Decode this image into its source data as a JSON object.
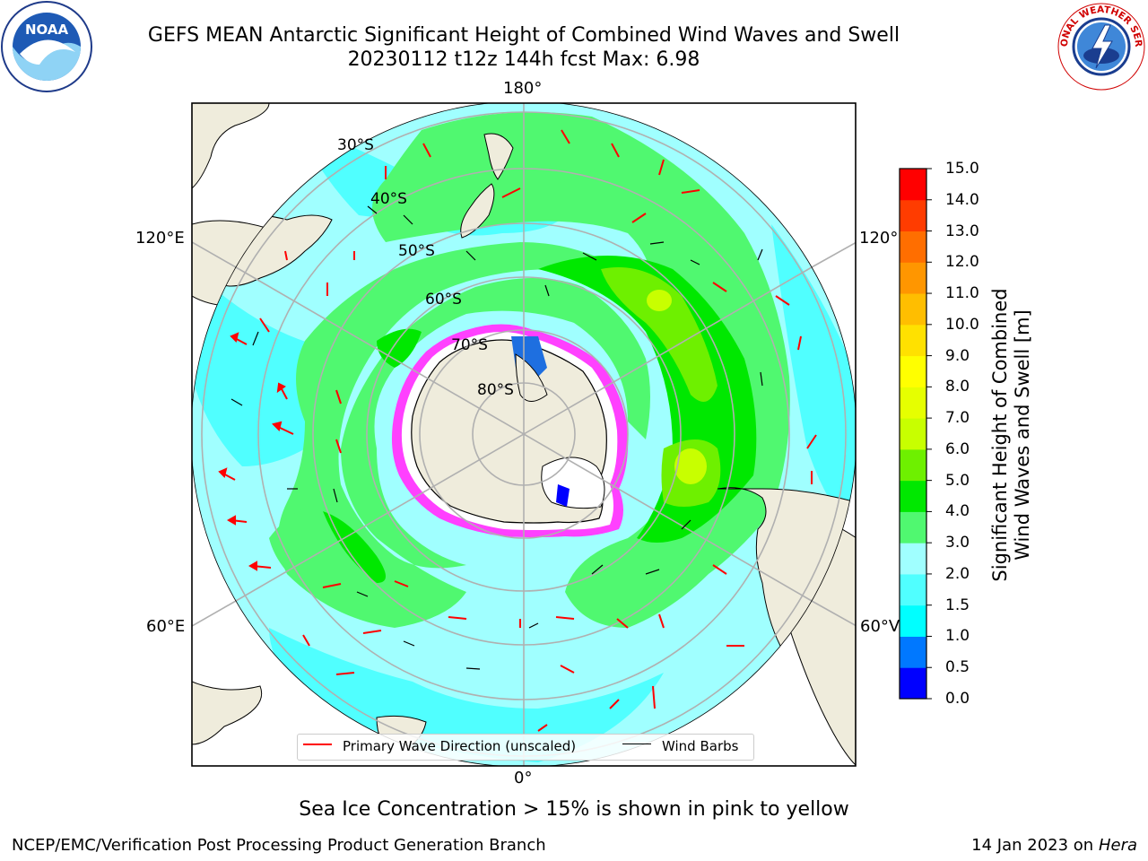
{
  "header": {
    "title_line1": "GEFS MEAN Antarctic Significant Height of Combined Wind Waves and Swell",
    "title_line2": "20230112 t12z 144h fcst   Max: 6.98"
  },
  "logos": {
    "left": "noaa-logo",
    "left_text": "NOAA",
    "right": "nws-logo",
    "right_text": "NATIONAL WEATHER SERVICE"
  },
  "map": {
    "projection": "south-polar-stereographic",
    "longitude_labels": {
      "top": "180°",
      "left_upper": "120°E",
      "right_upper": "120°",
      "left_lower": "60°E",
      "right_lower": "60°V",
      "bottom": "0°"
    },
    "latitude_labels": [
      "30°S",
      "40°S",
      "50°S",
      "60°S",
      "70°S",
      "80°S"
    ],
    "colors": {
      "land": "#efecdc",
      "ocean_base": "#a0ffff",
      "band_3_4": "#50f870",
      "band_4_5": "#00e800",
      "band_5_6": "#6ef000",
      "band_6_7": "#c8ff00",
      "ice": "#ff40ff",
      "arrows": "#ff0000"
    }
  },
  "legend": {
    "primary_wave_label": "Primary Wave Direction (unscaled)",
    "wind_barbs_label": "Wind Barbs",
    "primary_wave_color": "#ff0000",
    "wind_barbs_color": "#000000"
  },
  "colorbar": {
    "label_line1": "Significant Height of Combined",
    "label_line2": "Wind Waves and Swell [m]",
    "ticks": [
      "0.0",
      "0.5",
      "1.0",
      "1.5",
      "2.0",
      "3.0",
      "4.0",
      "5.0",
      "6.0",
      "7.0",
      "8.0",
      "9.0",
      "10.0",
      "11.0",
      "12.0",
      "13.0",
      "14.0",
      "15.0"
    ],
    "colors": [
      "#0000ff",
      "#0078ff",
      "#00ffff",
      "#50ffff",
      "#a0ffff",
      "#50f870",
      "#00e800",
      "#6ef000",
      "#c8ff00",
      "#e6ff00",
      "#ffff00",
      "#ffe100",
      "#ffbe00",
      "#ff9600",
      "#ff6e00",
      "#ff3c00",
      "#ff0000"
    ]
  },
  "subtitle": "Sea Ice Concentration > 15% is shown in pink to yellow",
  "footer": {
    "left": "NCEP/EMC/Verification Post Processing Product Generation Branch",
    "date": "14 Jan 2023 on",
    "host": "Hera"
  }
}
